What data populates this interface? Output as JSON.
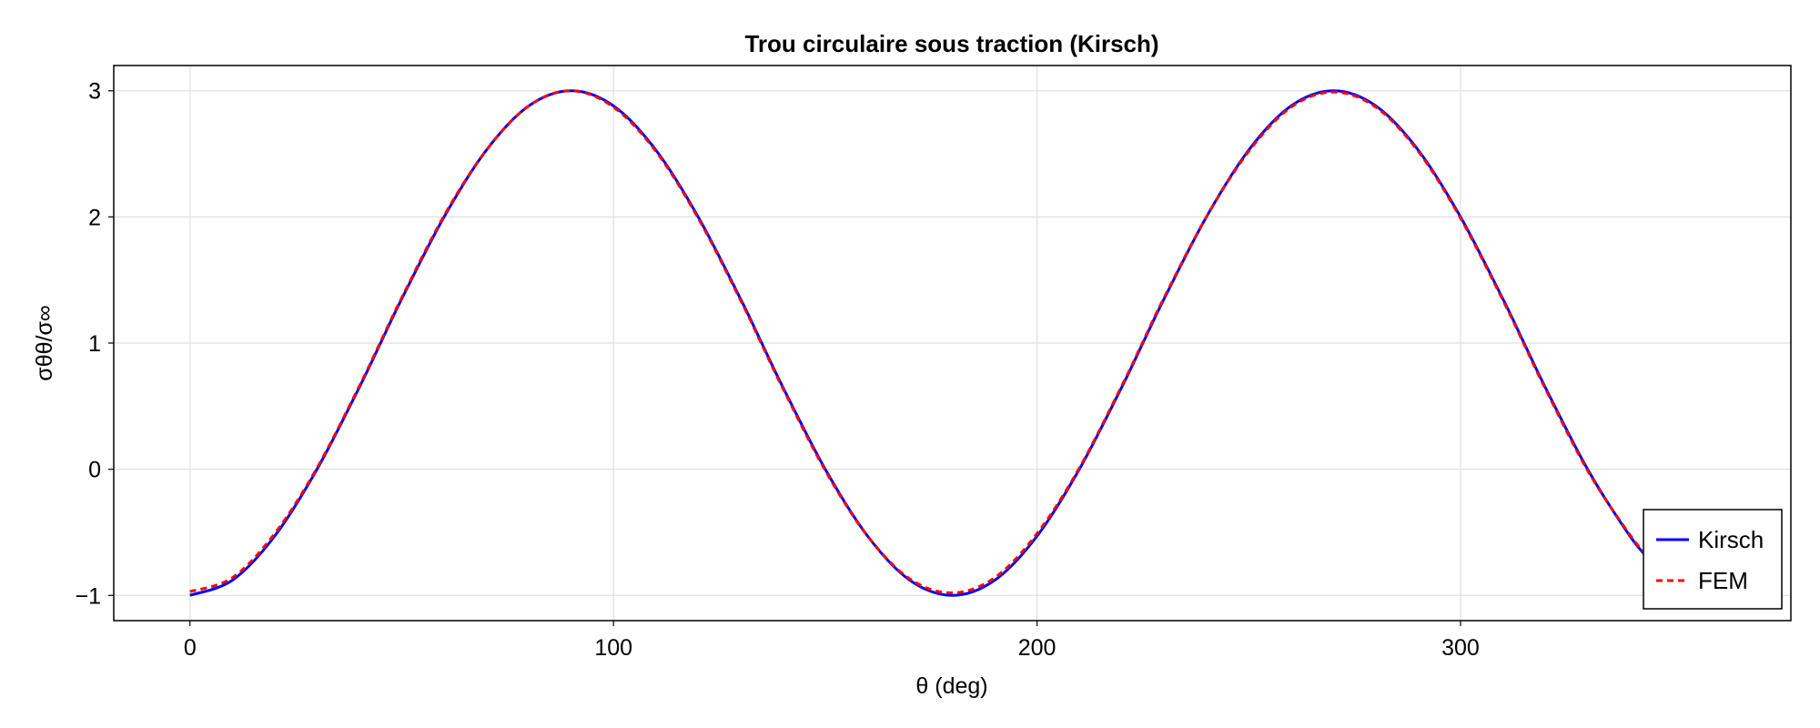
{
  "chart_data": {
    "type": "line",
    "title": "Trou circulaire sous traction (Kirsch)",
    "xlabel": "θ (deg)",
    "ylabel": "σθθ/σ∞",
    "xlim": [
      -18,
      378
    ],
    "ylim": [
      -1.2,
      3.2
    ],
    "x_ticks": [
      0,
      100,
      200,
      300
    ],
    "y_ticks": [
      -1,
      0,
      1,
      2,
      3
    ],
    "x_tick_labels": [
      "0",
      "100",
      "200",
      "300"
    ],
    "y_tick_labels": [
      "−1",
      "0",
      "1",
      "2",
      "3"
    ],
    "grid": true,
    "legend_position": "bottom-right",
    "series": [
      {
        "name": "Kirsch",
        "color": "#0000ff",
        "style": "solid",
        "x": [
          0,
          10,
          20,
          30,
          40,
          45,
          50,
          60,
          70,
          80,
          90,
          100,
          110,
          120,
          130,
          135,
          140,
          150,
          160,
          170,
          180,
          190,
          200,
          210,
          220,
          225,
          230,
          240,
          250,
          260,
          270,
          280,
          290,
          300,
          310,
          315,
          320,
          330,
          340,
          345
        ],
        "y": [
          -1.0,
          -0.88,
          -0.53,
          0.0,
          0.65,
          1.0,
          1.35,
          2.0,
          2.53,
          2.88,
          3.0,
          2.88,
          2.53,
          2.0,
          1.35,
          1.0,
          0.65,
          0.0,
          -0.53,
          -0.88,
          -1.0,
          -0.88,
          -0.53,
          0.0,
          0.65,
          1.0,
          1.35,
          2.0,
          2.53,
          2.88,
          3.0,
          2.88,
          2.53,
          2.0,
          1.35,
          1.0,
          0.65,
          0.0,
          -0.53,
          -0.73
        ]
      },
      {
        "name": "FEM",
        "color": "#ff0000",
        "style": "dashed",
        "x": [
          0,
          10,
          20,
          30,
          40,
          45,
          50,
          60,
          70,
          80,
          90,
          100,
          110,
          120,
          130,
          135,
          140,
          150,
          160,
          170,
          180,
          190,
          200,
          210,
          220,
          225,
          230,
          240,
          250,
          260,
          270,
          280,
          290,
          300,
          310,
          315,
          320,
          330,
          340,
          345
        ],
        "y": [
          -0.97,
          -0.86,
          -0.51,
          0.01,
          0.66,
          1.01,
          1.36,
          2.01,
          2.53,
          2.88,
          3.0,
          2.87,
          2.52,
          1.99,
          1.34,
          0.99,
          0.64,
          -0.01,
          -0.53,
          -0.87,
          -0.98,
          -0.86,
          -0.51,
          0.01,
          0.66,
          1.01,
          1.36,
          2.0,
          2.52,
          2.87,
          2.99,
          2.87,
          2.52,
          1.99,
          1.34,
          0.99,
          0.64,
          -0.01,
          -0.52,
          -0.72
        ]
      }
    ]
  }
}
